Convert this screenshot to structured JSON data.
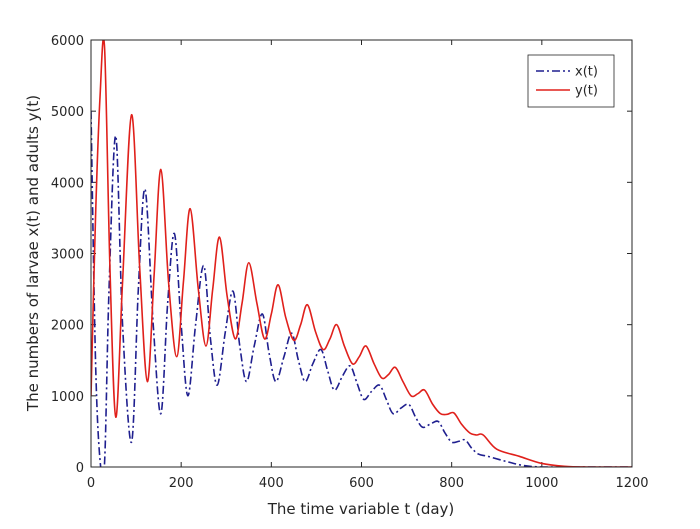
{
  "chart_data": {
    "type": "line",
    "xlabel": "The time variable t (day)",
    "ylabel": "The numbers of larvae x(t) and adults y(t)",
    "xlim": [
      0,
      1200
    ],
    "xticks": [
      0,
      200,
      400,
      600,
      800,
      1000,
      1200
    ],
    "ylim": [
      0,
      6000
    ],
    "yticks": [
      0,
      1000,
      2000,
      3000,
      4000,
      5000,
      6000
    ],
    "legend": "upper right",
    "series": [
      {
        "name": "x(t)",
        "color": "#1f1f8f",
        "dash": "dashdot",
        "x": [
          0,
          10,
          20,
          30,
          40,
          55,
          70,
          90,
          105,
          120,
          138,
          155,
          170,
          185,
          200,
          215,
          232,
          250,
          265,
          280,
          298,
          315,
          330,
          345,
          362,
          380,
          395,
          410,
          428,
          445,
          460,
          475,
          492,
          510,
          525,
          540,
          558,
          575,
          590,
          605,
          622,
          640,
          655,
          670,
          688,
          705,
          720,
          735,
          752,
          770,
          785,
          800,
          815,
          830,
          845,
          860,
          880,
          920,
          960,
          1000,
          1050,
          1100,
          1200
        ],
        "values": [
          5000,
          1500,
          100,
          50,
          2500,
          4650,
          2000,
          350,
          2500,
          3900,
          2000,
          750,
          2300,
          3280,
          2000,
          1000,
          2000,
          2830,
          1800,
          1150,
          1900,
          2470,
          1700,
          1200,
          1700,
          2150,
          1600,
          1200,
          1550,
          1880,
          1500,
          1200,
          1450,
          1650,
          1350,
          1080,
          1280,
          1420,
          1180,
          950,
          1060,
          1150,
          950,
          750,
          830,
          880,
          700,
          560,
          600,
          640,
          480,
          350,
          360,
          380,
          260,
          180,
          150,
          80,
          20,
          0,
          0,
          0,
          0
        ]
      },
      {
        "name": "y(t)",
        "color": "#e0201b",
        "dash": "solid",
        "x": [
          0,
          10,
          20,
          30,
          42,
          55,
          70,
          90,
          108,
          125,
          140,
          155,
          172,
          190,
          205,
          220,
          238,
          255,
          270,
          285,
          302,
          320,
          335,
          350,
          368,
          385,
          400,
          415,
          432,
          450,
          465,
          480,
          498,
          515,
          530,
          545,
          562,
          580,
          595,
          610,
          628,
          645,
          660,
          675,
          692,
          710,
          725,
          740,
          758,
          775,
          790,
          805,
          822,
          840,
          855,
          870,
          900,
          950,
          1000,
          1050,
          1100,
          1200
        ],
        "values": [
          1000,
          3500,
          5200,
          5900,
          2800,
          700,
          2600,
          4950,
          2800,
          1200,
          2700,
          4180,
          2600,
          1550,
          2600,
          3630,
          2500,
          1700,
          2500,
          3230,
          2400,
          1800,
          2300,
          2870,
          2300,
          1800,
          2150,
          2560,
          2100,
          1780,
          2000,
          2280,
          1900,
          1650,
          1800,
          2000,
          1700,
          1450,
          1550,
          1700,
          1450,
          1250,
          1300,
          1400,
          1200,
          1000,
          1030,
          1080,
          880,
          750,
          740,
          760,
          600,
          480,
          450,
          450,
          250,
          150,
          50,
          10,
          0,
          0
        ]
      }
    ]
  }
}
